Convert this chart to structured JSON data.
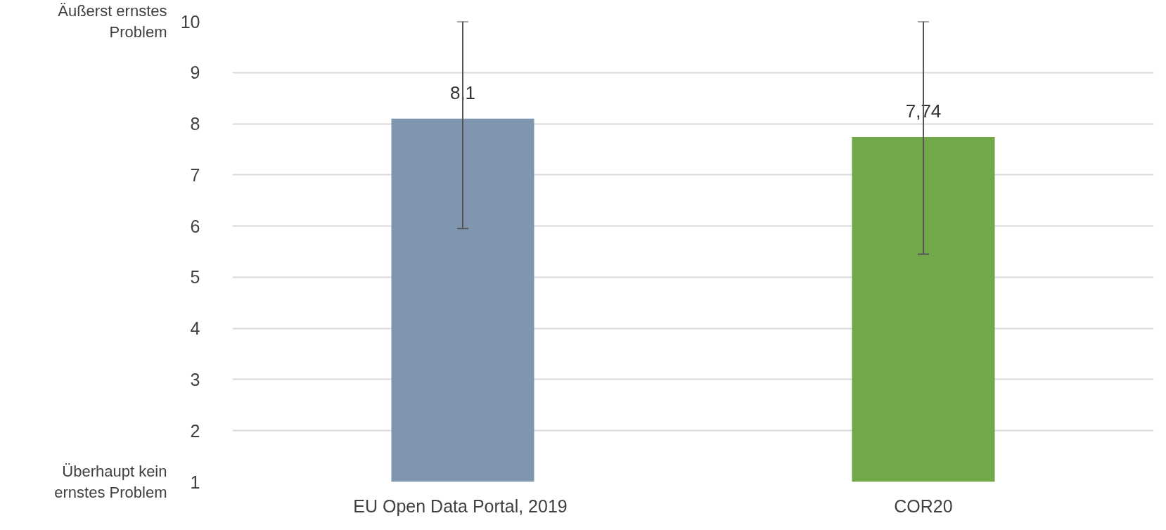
{
  "chart_data": {
    "type": "bar",
    "categories": [
      "EU Open Data Portal,  2019",
      "COR20"
    ],
    "values": [
      8.1,
      7.74
    ],
    "colors": [
      "#8096ae",
      "#70a84a"
    ],
    "value_labels": [
      "8,1",
      "7,74"
    ],
    "errors": [
      [
        5.95,
        10
      ],
      [
        5.45,
        10
      ]
    ],
    "ylim": [
      1,
      10
    ],
    "yticks": [
      1,
      2,
      3,
      4,
      5,
      6,
      7,
      8,
      9,
      10
    ],
    "grid": "y",
    "annotations": [
      "Äußerst ernstes\nProblem",
      "Überhaupt kein\nernstes Problem"
    ]
  }
}
